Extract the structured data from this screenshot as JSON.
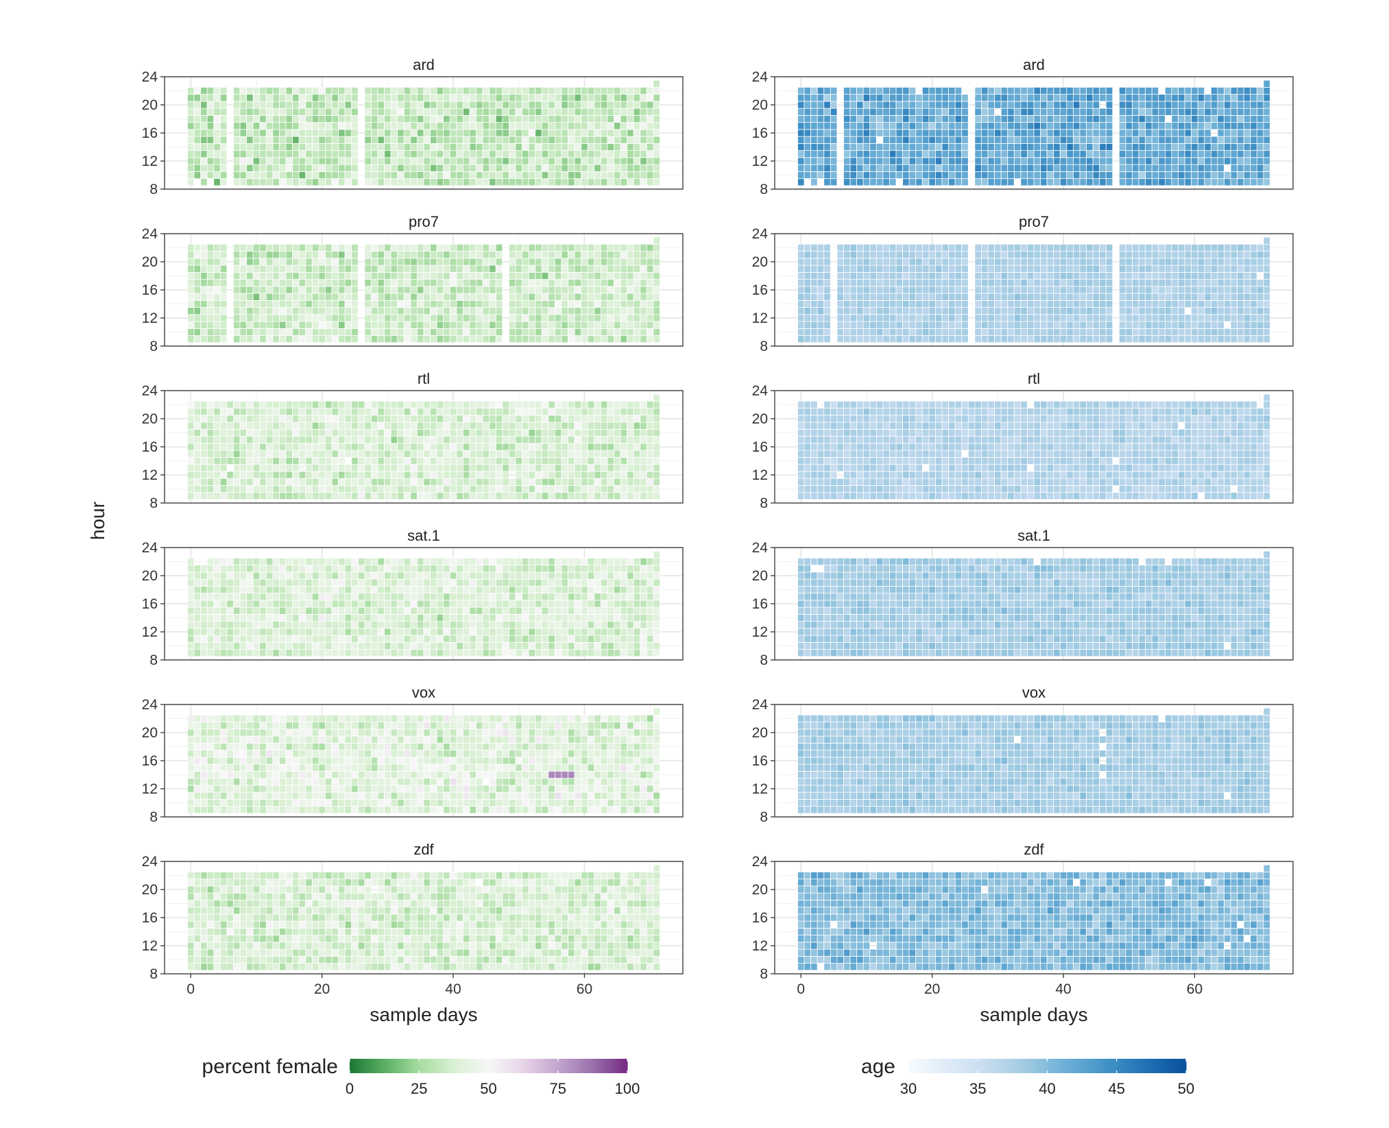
{
  "chart_data": {
    "type": "heatmap",
    "ylabel": "hour",
    "xlabel": "sample days",
    "x_ticks": [
      "0",
      "20",
      "40",
      "60"
    ],
    "y_ticks": [
      "8",
      "12",
      "16",
      "20",
      "24"
    ],
    "xlim": [
      -4,
      75
    ],
    "ylim": [
      8,
      24
    ],
    "n_days": 72,
    "hours": [
      9,
      10,
      11,
      12,
      13,
      14,
      15,
      16,
      17,
      18,
      19,
      20,
      21,
      22
    ],
    "day23_extra_hour_days": [
      71
    ],
    "channels": [
      "ard",
      "pro7",
      "rtl",
      "sat.1",
      "vox",
      "zdf"
    ],
    "columns": [
      {
        "variable": "percent female",
        "xlabel": "sample days",
        "legend": {
          "title": "percent female",
          "range": [
            0,
            100
          ],
          "ticks": [
            "0",
            "25",
            "50",
            "75",
            "100"
          ],
          "colors": [
            "#1b7837",
            "#5aae61",
            "#a6dba0",
            "#d9f0d3",
            "#f7f7f7",
            "#e7d4e8",
            "#c2a5cf",
            "#9970ab",
            "#762a83"
          ]
        },
        "panels": [
          {
            "channel": "ard",
            "mean": 33,
            "spread": 12,
            "missing_days": [
              6,
              26
            ],
            "missing_cells": [
              "1-9",
              "3-9"
            ]
          },
          {
            "channel": "pro7",
            "mean": 35,
            "spread": 11,
            "missing_days": [
              6,
              26,
              48
            ],
            "missing_cells": []
          },
          {
            "channel": "rtl",
            "mean": 38,
            "spread": 10,
            "missing_days": [],
            "missing_cells": [
              "6-13",
              "24-14",
              "49-12"
            ]
          },
          {
            "channel": "sat.1",
            "mean": 39,
            "spread": 10,
            "missing_days": [],
            "missing_cells": [
              "1-22",
              "2-22"
            ]
          },
          {
            "channel": "vox",
            "mean": 41,
            "spread": 11,
            "missing_days": [],
            "missing_cells": [
              "45-13"
            ],
            "highlight": {
              "days": [
                55,
                56,
                57,
                58
              ],
              "hour": 14,
              "value": 82
            }
          },
          {
            "channel": "zdf",
            "mean": 38,
            "spread": 10,
            "missing_days": [],
            "missing_cells": [
              "44-21",
              "28-20"
            ]
          }
        ]
      },
      {
        "variable": "age",
        "xlabel": "sample days",
        "legend": {
          "title": "age",
          "range": [
            30,
            50
          ],
          "ticks": [
            "30",
            "35",
            "40",
            "45",
            "50"
          ],
          "colors": [
            "#f7fbff",
            "#deebf7",
            "#c6dbef",
            "#9ecae1",
            "#6baed6",
            "#4292c6",
            "#2171b5",
            "#08519c"
          ]
        },
        "panels": [
          {
            "channel": "ard",
            "mean": 42,
            "spread": 3,
            "missing_days": [
              6,
              26,
              48
            ],
            "missing_cells": [
              "1-9",
              "3-9",
              "12-15",
              "15-9",
              "30-19",
              "33-9",
              "46-20",
              "56-18",
              "63-16",
              "65-11",
              "18-22",
              "25-22",
              "55-22",
              "62-22"
            ]
          },
          {
            "channel": "pro7",
            "mean": 37.5,
            "spread": 1.2,
            "missing_days": [
              5,
              26,
              48
            ],
            "missing_cells": [
              "70-18",
              "59-13",
              "65-11"
            ]
          },
          {
            "channel": "rtl",
            "mean": 37,
            "spread": 1.3,
            "missing_days": [],
            "missing_cells": [
              "3-22",
              "6-12",
              "19-13",
              "25-15",
              "35-13",
              "48-14",
              "48-10",
              "58-19",
              "66-10",
              "61-9",
              "35-22",
              "70-22"
            ]
          },
          {
            "channel": "sat.1",
            "mean": 38,
            "spread": 1.4,
            "missing_days": [],
            "missing_cells": [
              "2-21",
              "3-21",
              "65-10",
              "36-22",
              "52-22",
              "56-22"
            ]
          },
          {
            "channel": "vox",
            "mean": 38,
            "spread": 1.3,
            "missing_days": [],
            "missing_cells": [
              "33-19",
              "65-11",
              "46-20",
              "46-18",
              "46-16",
              "46-14",
              "55-22"
            ]
          },
          {
            "channel": "zdf",
            "mean": 40,
            "spread": 2.2,
            "missing_days": [],
            "missing_cells": [
              "5-15",
              "11-12",
              "28-20",
              "42-21",
              "56-21",
              "65-12",
              "67-15",
              "68-13",
              "62-21",
              "3-9"
            ]
          }
        ]
      }
    ]
  }
}
